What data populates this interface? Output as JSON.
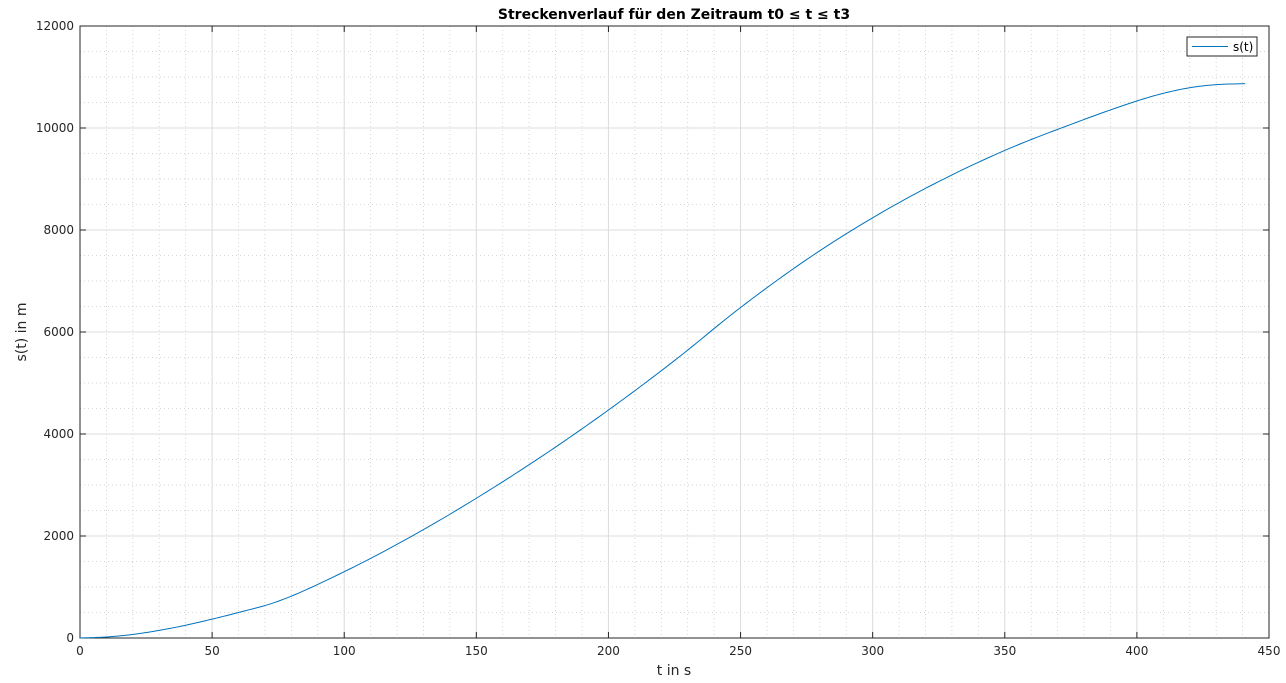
{
  "chart_data": {
    "type": "line",
    "title": "Streckenverlauf für den Zeitraum t0 ≤ t ≤ t3",
    "xlabel": "t in s",
    "ylabel": "s(t) in m",
    "xlim": [
      0,
      450
    ],
    "ylim": [
      0,
      12000
    ],
    "xticks": [
      0,
      50,
      100,
      150,
      200,
      250,
      300,
      350,
      400,
      450
    ],
    "yticks": [
      0,
      2000,
      4000,
      6000,
      8000,
      10000,
      12000
    ],
    "xtick_labels": [
      "0",
      "50",
      "100",
      "150",
      "200",
      "250",
      "300",
      "350",
      "400",
      "450"
    ],
    "ytick_labels": [
      "0",
      "2000",
      "4000",
      "6000",
      "8000",
      "10000",
      "12000"
    ],
    "grid": "major and minor",
    "legend_position": "top-right",
    "series": [
      {
        "name": "s(t)",
        "color": "#0072BD",
        "x": [
          0,
          10,
          20,
          30,
          40,
          50,
          60,
          75,
          100,
          125,
          150,
          175,
          200,
          225,
          250,
          275,
          300,
          325,
          350,
          375,
          400,
          410,
          420,
          430,
          441
        ],
        "y": [
          0,
          20,
          70,
          150,
          250,
          370,
          500,
          720,
          1300,
          1980,
          2740,
          3570,
          4470,
          5440,
          6480,
          7420,
          8240,
          8950,
          9560,
          10070,
          10530,
          10680,
          10790,
          10850,
          10870
        ]
      }
    ]
  }
}
